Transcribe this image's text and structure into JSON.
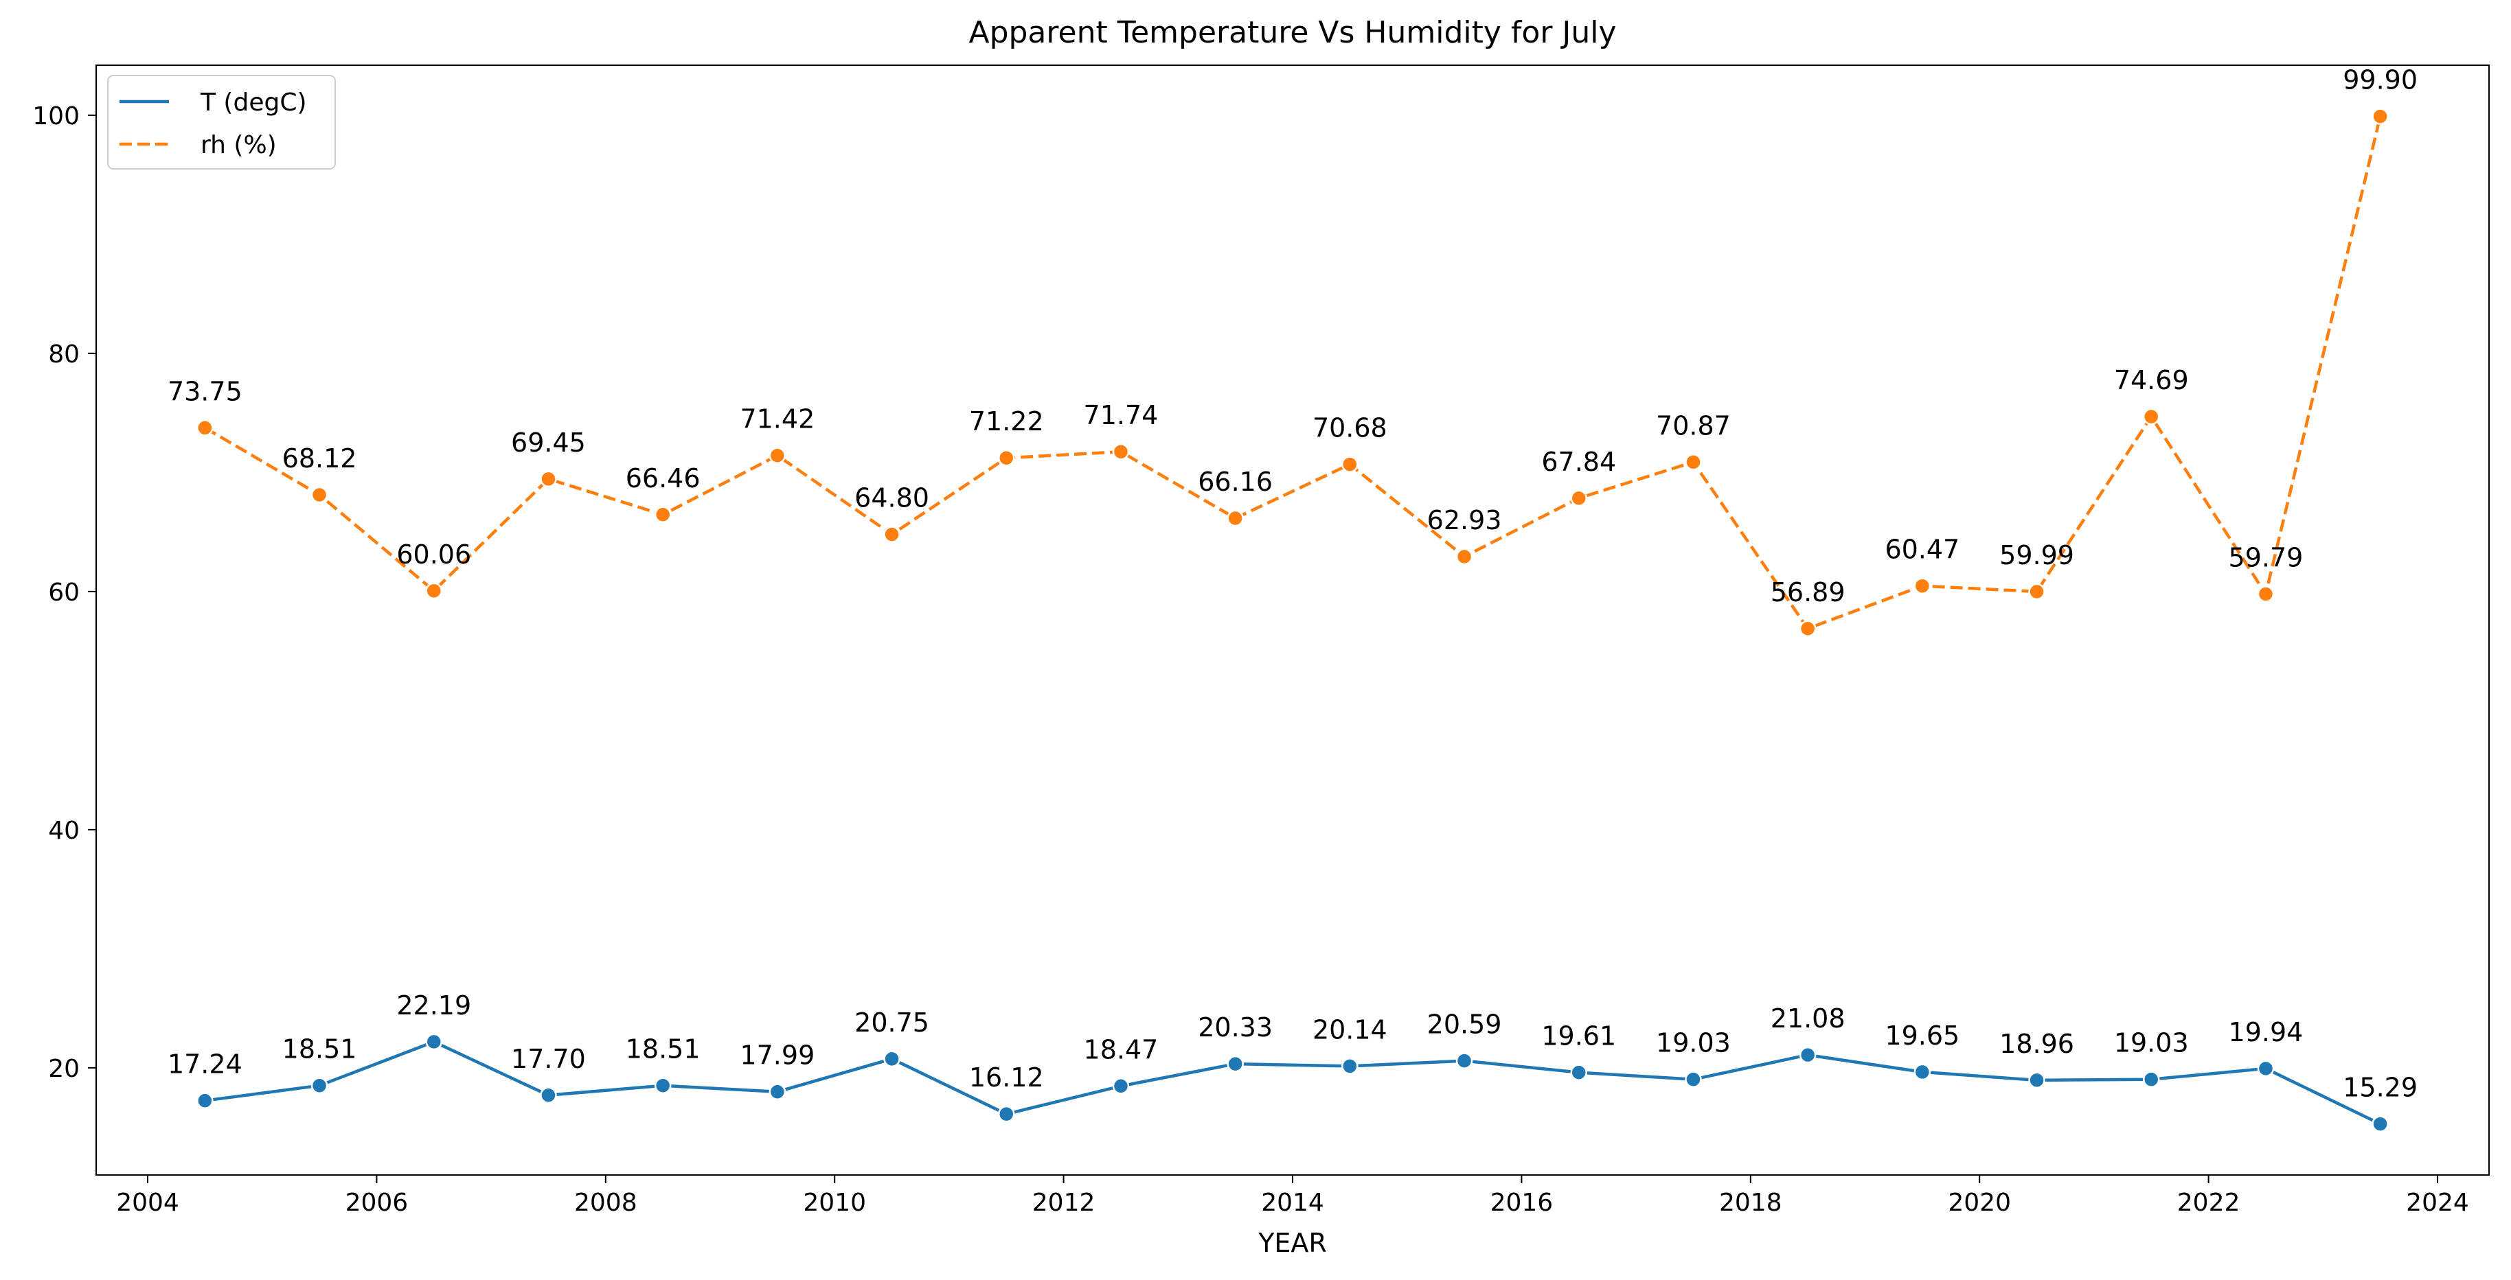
{
  "chart_data": {
    "type": "line",
    "title": "Apparent Temperature Vs Humidity for July",
    "xlabel": "YEAR",
    "ylabel": "",
    "xlim": [
      2003.55,
      2024.45
    ],
    "ylim": [
      11.0,
      104.2
    ],
    "xticks": [
      2004,
      2006,
      2008,
      2010,
      2012,
      2014,
      2016,
      2018,
      2020,
      2022,
      2024
    ],
    "xtick_labels": [
      "2004",
      "2006",
      "2008",
      "2010",
      "2012",
      "2014",
      "2016",
      "2018",
      "2020",
      "2022",
      "2024"
    ],
    "yticks": [
      20,
      40,
      60,
      80,
      100
    ],
    "ytick_labels": [
      "20",
      "40",
      "60",
      "80",
      "100"
    ],
    "grid": false,
    "legend_position": "top-left",
    "x": [
      2004.5,
      2005.5,
      2006.5,
      2007.5,
      2008.5,
      2009.5,
      2010.5,
      2011.5,
      2012.5,
      2013.5,
      2014.5,
      2015.5,
      2016.5,
      2017.5,
      2018.5,
      2019.5,
      2020.5,
      2021.5,
      2022.5,
      2023.5
    ],
    "series": [
      {
        "name": "T (degC)",
        "color": "#1f77b4",
        "linestyle": "solid",
        "values": [
          17.24,
          18.51,
          22.19,
          17.7,
          18.51,
          17.99,
          20.75,
          16.12,
          18.47,
          20.33,
          20.14,
          20.59,
          19.61,
          19.03,
          21.08,
          19.65,
          18.96,
          19.03,
          19.94,
          15.29
        ],
        "labels": [
          "17.24",
          "18.51",
          "22.19",
          "17.70",
          "18.51",
          "17.99",
          "20.75",
          "16.12",
          "18.47",
          "20.33",
          "20.14",
          "20.59",
          "19.61",
          "19.03",
          "21.08",
          "19.65",
          "18.96",
          "19.03",
          "19.94",
          "15.29"
        ]
      },
      {
        "name": "rh (%)",
        "color": "#ff7f0e",
        "linestyle": "dashed",
        "values": [
          73.75,
          68.12,
          60.06,
          69.45,
          66.46,
          71.42,
          64.8,
          71.22,
          71.74,
          66.16,
          70.68,
          62.93,
          67.84,
          70.87,
          56.89,
          60.47,
          59.99,
          74.69,
          59.79,
          99.9
        ],
        "labels": [
          "73.75",
          "68.12",
          "60.06",
          "69.45",
          "66.46",
          "71.42",
          "64.80",
          "71.22",
          "71.74",
          "66.16",
          "70.68",
          "62.93",
          "67.84",
          "70.87",
          "56.89",
          "60.47",
          "59.99",
          "74.69",
          "59.79",
          "99.90"
        ]
      }
    ]
  }
}
